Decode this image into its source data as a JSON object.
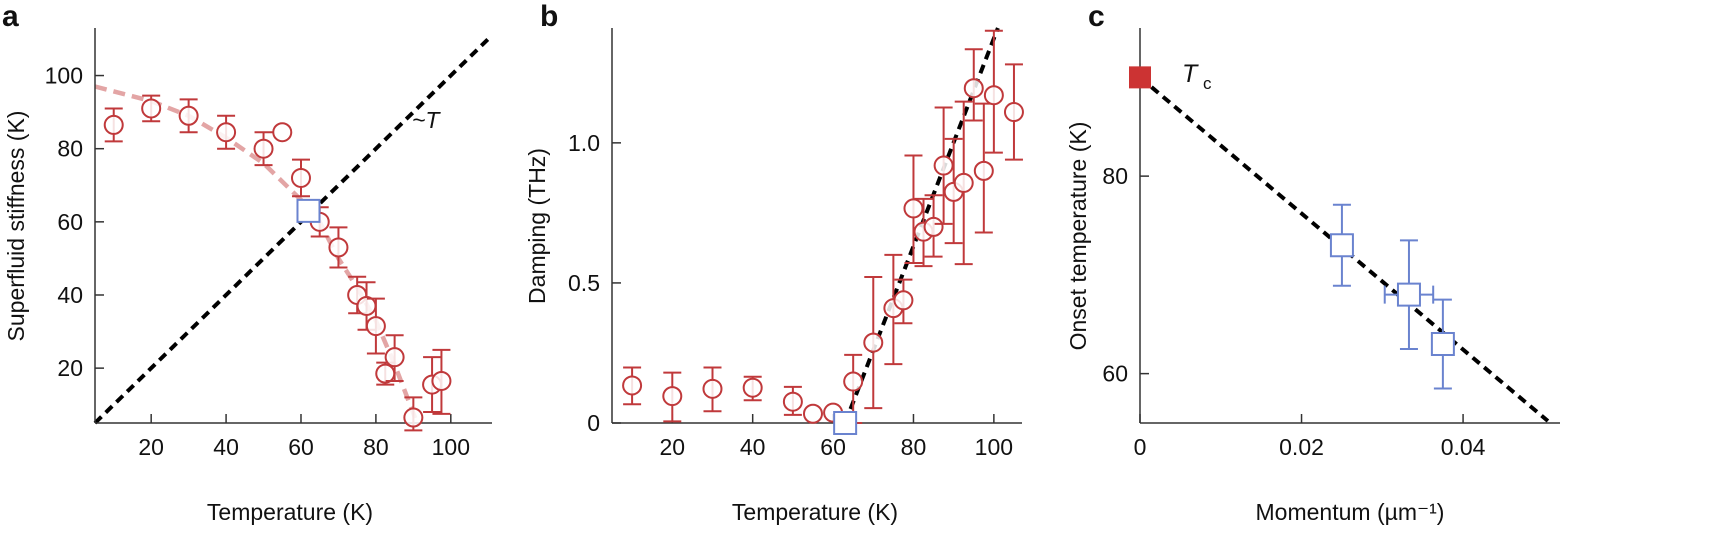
{
  "colors": {
    "data_red": "#c0393b",
    "data_blue": "#6a83cf",
    "fit_pink": "#e3a5a5",
    "tc_fill": "#cc3333",
    "line_black": "#000000"
  },
  "chart_data": [
    {
      "panel": "a",
      "type": "scatter",
      "xlabel": "Temperature (K)",
      "ylabel": "Superfluid stiffness (K)",
      "xlim": [
        5,
        111
      ],
      "ylim": [
        5,
        113
      ],
      "xticks": [
        20,
        40,
        60,
        80,
        100
      ],
      "xtick_labels": [
        "20",
        "40",
        "60",
        "80",
        "100"
      ],
      "yticks": [
        20,
        40,
        60,
        80,
        100
      ],
      "ytick_labels": [
        "20",
        "40",
        "60",
        "80",
        "100"
      ],
      "grid": false,
      "annotation": "~T",
      "series": [
        {
          "marker": "open-circle",
          "color": "#c0393b",
          "points": [
            {
              "x": 10,
              "y": 86.5,
              "ylo": 82,
              "yhi": 91
            },
            {
              "x": 20,
              "y": 91,
              "ylo": 87.5,
              "yhi": 94.5
            },
            {
              "x": 30,
              "y": 89,
              "ylo": 84.5,
              "yhi": 93.5
            },
            {
              "x": 40,
              "y": 84.5,
              "ylo": 80,
              "yhi": 89
            },
            {
              "x": 50,
              "y": 80,
              "ylo": 75.5,
              "yhi": 84.5
            },
            {
              "x": 55,
              "y": 84.5
            },
            {
              "x": 60,
              "y": 72,
              "ylo": 67,
              "yhi": 77
            },
            {
              "x": 65,
              "y": 60,
              "ylo": 56,
              "yhi": 64
            },
            {
              "x": 70,
              "y": 53,
              "ylo": 47.5,
              "yhi": 58.5
            },
            {
              "x": 75,
              "y": 40,
              "ylo": 35,
              "yhi": 45
            },
            {
              "x": 77.5,
              "y": 37,
              "ylo": 30.5,
              "yhi": 43.5
            },
            {
              "x": 80,
              "y": 31.5,
              "ylo": 24,
              "yhi": 39
            },
            {
              "x": 82.5,
              "y": 18.5,
              "ylo": 15.5,
              "yhi": 21.5
            },
            {
              "x": 85,
              "y": 23,
              "ylo": 16.5,
              "yhi": 29
            },
            {
              "x": 90,
              "y": 6.5,
              "ylo": 3,
              "yhi": 12
            },
            {
              "x": 95,
              "y": 15.5,
              "ylo": 8,
              "yhi": 23
            },
            {
              "x": 97.5,
              "y": 16.5,
              "ylo": 7.5,
              "yhi": 25
            }
          ]
        },
        {
          "marker": "open-square",
          "color": "#6a83cf",
          "points": [
            {
              "x": 62,
              "y": 63
            }
          ]
        },
        {
          "line": "dashed-fit",
          "color": "#e3a5a5",
          "points": [
            {
              "x": 5,
              "y": 97
            },
            {
              "x": 20,
              "y": 93
            },
            {
              "x": 30,
              "y": 89
            },
            {
              "x": 40,
              "y": 83
            },
            {
              "x": 50,
              "y": 76
            },
            {
              "x": 60,
              "y": 66
            },
            {
              "x": 65,
              "y": 60
            },
            {
              "x": 70,
              "y": 50
            },
            {
              "x": 75,
              "y": 42
            },
            {
              "x": 80,
              "y": 33
            },
            {
              "x": 85,
              "y": 21
            },
            {
              "x": 91,
              "y": 5
            }
          ]
        },
        {
          "line": "dashed-linear",
          "color": "#000000",
          "points": [
            {
              "x": 5,
              "y": 5
            },
            {
              "x": 111,
              "y": 111
            }
          ]
        }
      ]
    },
    {
      "panel": "b",
      "type": "scatter",
      "xlabel": "Temperature (K)",
      "ylabel": "Damping (THz)",
      "xlim": [
        5,
        107
      ],
      "ylim": [
        0,
        1.41
      ],
      "xticks": [
        20,
        40,
        60,
        80,
        100
      ],
      "xtick_labels": [
        "20",
        "40",
        "60",
        "80",
        "100"
      ],
      "yticks": [
        0,
        0.5,
        1.0
      ],
      "ytick_labels": [
        "0",
        "0.5",
        "1.0"
      ],
      "grid": false,
      "series": [
        {
          "marker": "open-circle",
          "color": "#c0393b",
          "points": [
            {
              "x": 10,
              "y": 0.134,
              "ylo": 0.067,
              "yhi": 0.198
            },
            {
              "x": 20,
              "y": 0.096,
              "ylo": 0.006,
              "yhi": 0.18
            },
            {
              "x": 30,
              "y": 0.122,
              "ylo": 0.042,
              "yhi": 0.198
            },
            {
              "x": 40,
              "y": 0.126,
              "ylo": 0.081,
              "yhi": 0.165
            },
            {
              "x": 50,
              "y": 0.076,
              "ylo": 0.029,
              "yhi": 0.129
            },
            {
              "x": 55,
              "y": 0.033
            },
            {
              "x": 60,
              "y": 0.037
            },
            {
              "x": 65,
              "y": 0.148,
              "ylo": 0.0,
              "yhi": 0.243
            },
            {
              "x": 70,
              "y": 0.287,
              "ylo": 0.053,
              "yhi": 0.521
            },
            {
              "x": 75,
              "y": 0.41,
              "ylo": 0.21,
              "yhi": 0.6
            },
            {
              "x": 77.5,
              "y": 0.438,
              "ylo": 0.356,
              "yhi": 0.512
            },
            {
              "x": 80,
              "y": 0.766,
              "ylo": 0.571,
              "yhi": 0.955
            },
            {
              "x": 82.5,
              "y": 0.683,
              "ylo": 0.56,
              "yhi": 0.8
            },
            {
              "x": 85,
              "y": 0.7,
              "ylo": 0.594,
              "yhi": 0.813
            },
            {
              "x": 87.5,
              "y": 0.919,
              "ylo": 0.711,
              "yhi": 1.126
            },
            {
              "x": 90,
              "y": 0.825,
              "ylo": 0.642,
              "yhi": 1.014
            },
            {
              "x": 92.5,
              "y": 0.857,
              "ylo": 0.567,
              "yhi": 1.147
            },
            {
              "x": 95,
              "y": 1.195,
              "ylo": 1.08,
              "yhi": 1.334
            },
            {
              "x": 97.5,
              "y": 0.9,
              "ylo": 0.68,
              "yhi": 1.14
            },
            {
              "x": 100,
              "y": 1.17,
              "ylo": 0.965,
              "yhi": 1.4
            },
            {
              "x": 105,
              "y": 1.11,
              "ylo": 0.94,
              "yhi": 1.28
            }
          ]
        },
        {
          "marker": "open-square",
          "color": "#6a83cf",
          "points": [
            {
              "x": 63,
              "y": 0
            }
          ]
        },
        {
          "line": "dashed-linear",
          "color": "#000000",
          "points": [
            {
              "x": 63,
              "y": 0
            },
            {
              "x": 101,
              "y": 1.41
            }
          ]
        }
      ]
    },
    {
      "panel": "c",
      "type": "scatter",
      "xlabel": "Momentum (µm⁻¹)",
      "ylabel": "Onset temperature (K)",
      "xlim": [
        0,
        0.052
      ],
      "ylim": [
        55,
        95
      ],
      "xticks": [
        0,
        0.02,
        0.04
      ],
      "xtick_labels": [
        "0",
        "0.02",
        "0.04"
      ],
      "yticks": [
        60,
        80
      ],
      "ytick_labels": [
        "60",
        "80"
      ],
      "grid": false,
      "annotation": "T",
      "annotation_sub": "c",
      "series": [
        {
          "marker": "filled-square",
          "color": "#cc3333",
          "points": [
            {
              "x": 0,
              "y": 90
            }
          ]
        },
        {
          "marker": "open-square",
          "color": "#6a83cf",
          "points": [
            {
              "x": 0.025,
              "y": 73,
              "ylo": 68.9,
              "yhi": 77.1
            },
            {
              "x": 0.0333,
              "y": 68,
              "ylo": 62.5,
              "yhi": 73.5,
              "xlo": 0.0303,
              "xhi": 0.0363
            },
            {
              "x": 0.0375,
              "y": 63,
              "ylo": 58.5,
              "yhi": 67.5
            }
          ]
        },
        {
          "line": "dashed-linear",
          "color": "#000000",
          "points": [
            {
              "x": 0,
              "y": 90
            },
            {
              "x": 0.0505,
              "y": 55.2
            }
          ]
        }
      ]
    }
  ]
}
